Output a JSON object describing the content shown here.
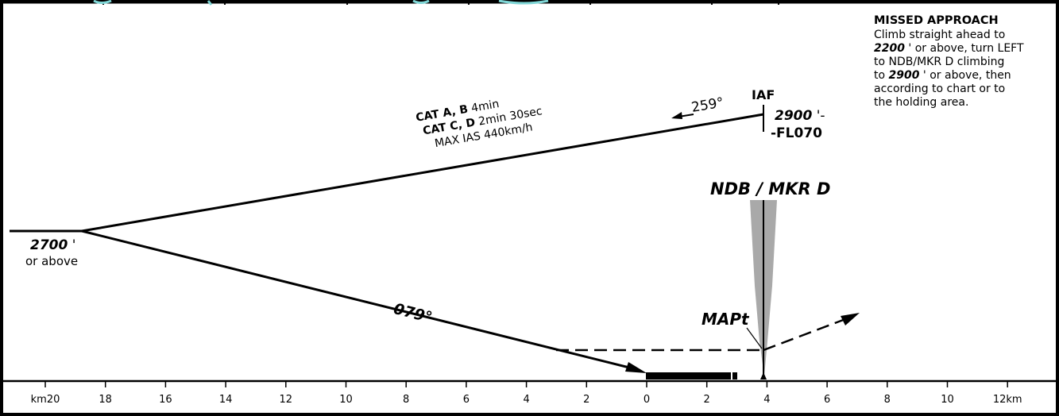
{
  "missed_approach": {
    "title": "MISSED APPROACH",
    "l1": "Climb straight ahead to",
    "l2_alt": "2200",
    "l2_rest": " ' or above, turn LEFT",
    "l3": "to NDB/MKR D climbing",
    "l4_pre": "to ",
    "l4_alt": "2900",
    "l4_rest": " ' or above, then",
    "l5": "according to chart or to",
    "l6": "the holding area."
  },
  "iaf": {
    "label": "IAF",
    "alt_top": "2900",
    "alt_top_suffix": " '-",
    "alt_bottom": "-FL070",
    "track": "259°"
  },
  "procedure_turn": {
    "cat_ab_label": "CAT A, B",
    "cat_ab_time": " 4min",
    "cat_cd_label": "CAT C, D",
    "cat_cd_time": " 2min 30sec",
    "max_ias": "MAX IAS 440km/h"
  },
  "turn_point": {
    "alt": "2700",
    "alt_suffix": " '",
    "alt_note": "or above"
  },
  "inbound": {
    "track": "079°"
  },
  "fixes": {
    "ndb": "NDB / MKR D",
    "mapt": "MAPt"
  },
  "distance_scale": {
    "labels": [
      "km20",
      "18",
      "16",
      "14",
      "12",
      "10",
      "8",
      "6",
      "4",
      "2",
      "0",
      "2",
      "4",
      "6",
      "8",
      "10",
      "12km"
    ],
    "values": [
      20,
      18,
      16,
      14,
      12,
      10,
      8,
      6,
      4,
      2,
      0,
      2,
      4,
      6,
      8,
      10,
      12
    ]
  },
  "colors": {
    "ink": "#000000",
    "cone": "#a9a9a9",
    "background": "#ffffff"
  }
}
